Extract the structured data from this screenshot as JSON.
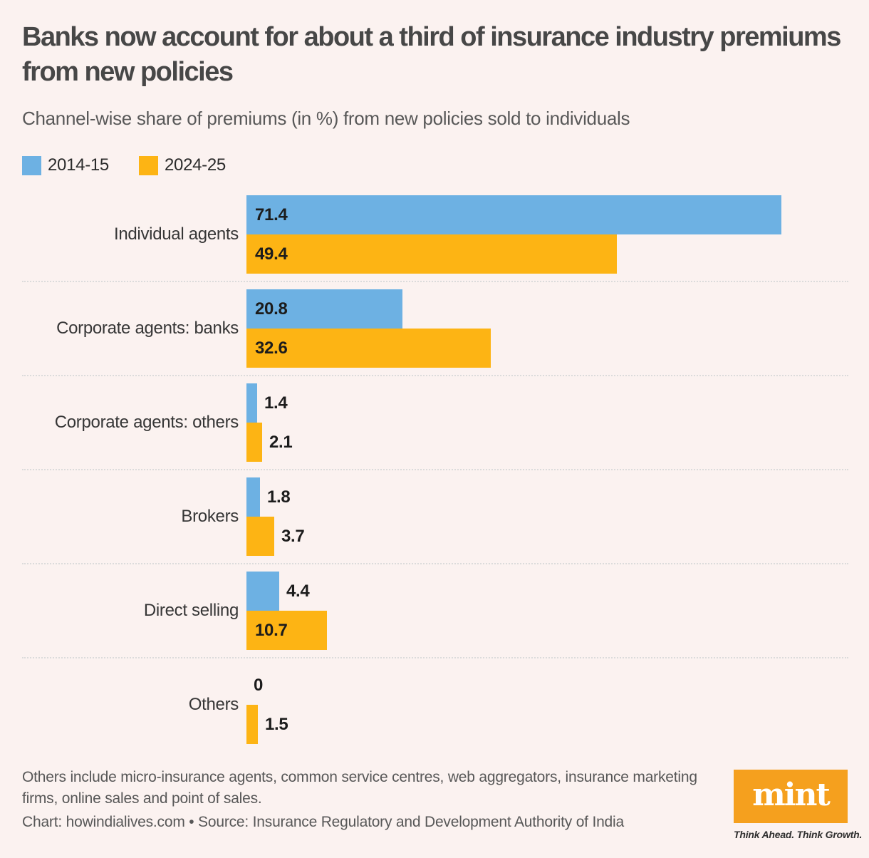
{
  "header": {
    "title": "Banks now account for about a third of insurance industry premiums from new policies",
    "subtitle": "Channel-wise share of premiums (in %) from new policies sold to individuals"
  },
  "legend": {
    "items": [
      {
        "label": "2014-15",
        "color": "#6DB1E3"
      },
      {
        "label": "2024-25",
        "color": "#FDB414"
      }
    ]
  },
  "chart_data": {
    "type": "bar",
    "orientation": "horizontal",
    "title": "Banks now account for about a third of insurance industry premiums from new policies",
    "subtitle": "Channel-wise share of premiums (in %) from new policies sold to individuals",
    "categories": [
      "Individual agents",
      "Corporate agents: banks",
      "Corporate agents: others",
      "Brokers",
      "Direct selling",
      "Others"
    ],
    "series": [
      {
        "name": "2014-15",
        "color": "#6DB1E3",
        "values": [
          71.4,
          20.8,
          1.4,
          1.8,
          4.4,
          0
        ]
      },
      {
        "name": "2024-25",
        "color": "#FDB414",
        "values": [
          49.4,
          32.6,
          2.1,
          3.7,
          10.7,
          1.5
        ]
      }
    ],
    "xlim": [
      0,
      71.4
    ],
    "grid": false,
    "value_labels": "on-bars",
    "legend_position": "top-left",
    "row_separator": "dotted"
  },
  "footer": {
    "footnote": "Others include micro-insurance agents, common service centres, web aggregators, insurance marketing firms, online sales and point of sales.",
    "credit": "Chart: howindialives.com • Source: Insurance Regulatory and Development Authority of India",
    "branding": {
      "logo_text": "mint",
      "tagline": "Think Ahead. Think Growth.",
      "logo_color": "#F5A01E"
    }
  }
}
